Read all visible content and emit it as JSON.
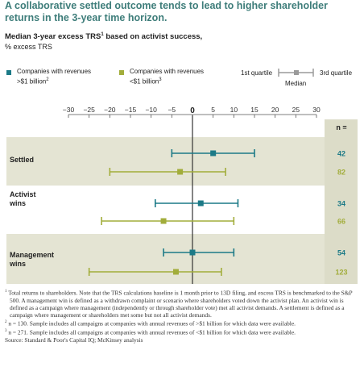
{
  "header": {
    "title": "A collaborative settled outcome tends to lead to higher shareholder returns in the 3-year time horizon.",
    "subtitle": "Median 3-year excess TRS",
    "subtitle_sup": "1",
    "subtitle_tail": " based on activist success,",
    "units": "% excess TRS"
  },
  "legend": {
    "large": {
      "label_line1": "Companies with revenues",
      "label_line2": ">$1 billion",
      "sup": "2",
      "color": "#1c7a87"
    },
    "small": {
      "label_line1": "Companies with revenues",
      "label_line2": "<$1 billion",
      "sup": "3",
      "color": "#a2ad3b"
    },
    "q1": "1st quartile",
    "median": "Median",
    "q3": "3rd quartile"
  },
  "n_header": "n =",
  "chart_data": {
    "type": "range",
    "xlim": [
      -30,
      30
    ],
    "x_ticks": [
      "−30",
      "−25",
      "−20",
      "−15",
      "−10",
      "−5",
      "0",
      "5",
      "10",
      "15",
      "20",
      "25",
      "30"
    ],
    "zero_label": "0",
    "categories": [
      {
        "label": "Settled",
        "large": {
          "q1": -5,
          "median": 5,
          "q3": 15,
          "n": "42"
        },
        "small": {
          "q1": -20,
          "median": -3,
          "q3": 8,
          "n": "82"
        }
      },
      {
        "label": "Activist wins",
        "large": {
          "q1": -9,
          "median": 2,
          "q3": 11,
          "n": "34"
        },
        "small": {
          "q1": -22,
          "median": -7,
          "q3": 10,
          "n": "66"
        }
      },
      {
        "label": "Management wins",
        "large": {
          "q1": -7,
          "median": 0,
          "q3": 10,
          "n": "54"
        },
        "small": {
          "q1": -25,
          "median": -4,
          "q3": 7,
          "n": "123"
        }
      }
    ]
  },
  "footnotes": {
    "f1_sup": "1",
    "f1": "Total returns to shareholders. Note that the TRS calculations baseline is 1 month prior to 13D filing, and excess TRS is benchmarked to the S&P 500. A management win is defined as a withdrawn complaint or scenario where shareholders voted down the activist plan. An activist win is defined as a campaign where management (independently or through shareholder vote) met all activist demands. A settlement is defined as a campaign where management or shareholders met some but not all activist demands.",
    "f2_sup": "2",
    "f2": "n = 130. Sample includes all campaigns at companies with annual revenues of >$1 billion for which data were available.",
    "f3_sup": "3",
    "f3": "n = 271. Sample includes all campaigns at companies with annual revenues of <$1 billion for which data were available.",
    "source": "Source: Standard & Poor's Capital IQ; McKinsey analysis"
  }
}
